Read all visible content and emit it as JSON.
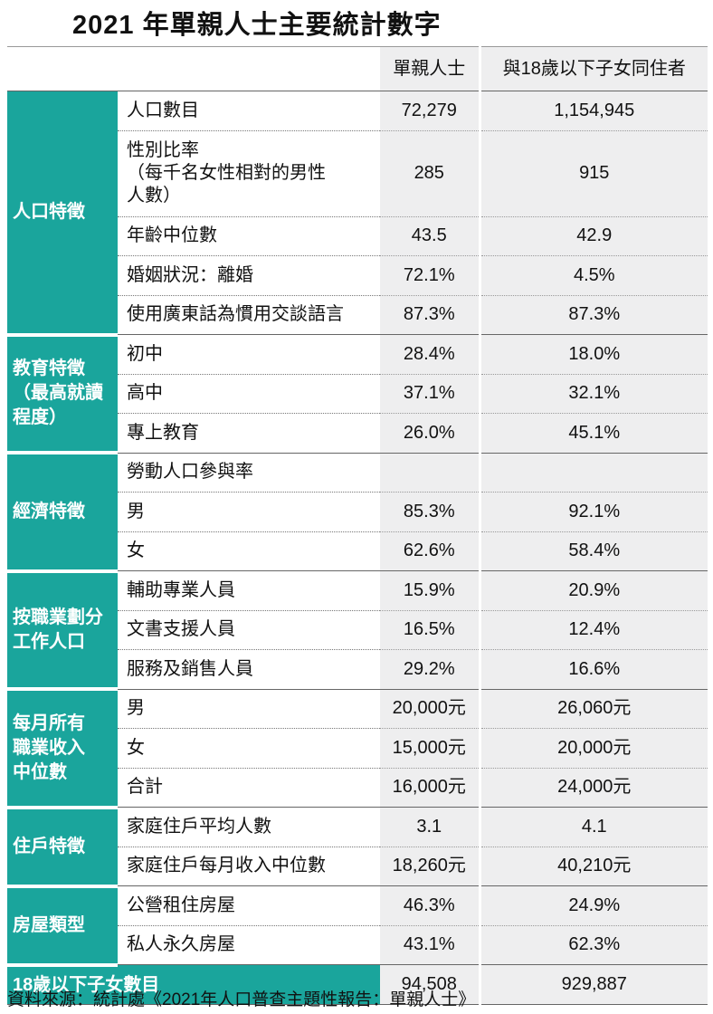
{
  "title": "2021 年單親人士主要統計數字",
  "table": {
    "columns": [
      "單親人士",
      "與18歲以下子女同住者"
    ],
    "groups": [
      {
        "label": "人口特徵",
        "rows": [
          {
            "item": "人口數目",
            "values": [
              "72,279",
              "1,154,945"
            ]
          },
          {
            "item": "性別比率\n（每千名女性相對的男性\n人數）",
            "values": [
              "285",
              "915"
            ]
          },
          {
            "item": "年齡中位數",
            "values": [
              "43.5",
              "42.9"
            ]
          },
          {
            "item": "婚姻狀況：離婚",
            "values": [
              "72.1%",
              "4.5%"
            ]
          },
          {
            "item": "使用廣東話為慣用交談語言",
            "values": [
              "87.3%",
              "87.3%"
            ]
          }
        ]
      },
      {
        "label": "教育特徵\n（最高就讀\n程度）",
        "rows": [
          {
            "item": "初中",
            "values": [
              "28.4%",
              "18.0%"
            ]
          },
          {
            "item": "高中",
            "values": [
              "37.1%",
              "32.1%"
            ]
          },
          {
            "item": "專上教育",
            "values": [
              "26.0%",
              "45.1%"
            ]
          }
        ]
      },
      {
        "label": "經濟特徵",
        "rows": [
          {
            "item": "勞動人口參與率",
            "values": null
          },
          {
            "item": "男",
            "values": [
              "85.3%",
              "92.1%"
            ]
          },
          {
            "item": "女",
            "values": [
              "62.6%",
              "58.4%"
            ]
          }
        ]
      },
      {
        "label": "按職業劃分\n工作人口",
        "rows": [
          {
            "item": "輔助專業人員",
            "values": [
              "15.9%",
              "20.9%"
            ]
          },
          {
            "item": "文書支援人員",
            "values": [
              "16.5%",
              "12.4%"
            ]
          },
          {
            "item": "服務及銷售人員",
            "values": [
              "29.2%",
              "16.6%"
            ]
          }
        ]
      },
      {
        "label": "每月所有\n職業收入\n中位數",
        "rows": [
          {
            "item": "男",
            "values": [
              "20,000元",
              "26,060元"
            ]
          },
          {
            "item": "女",
            "values": [
              "15,000元",
              "20,000元"
            ]
          },
          {
            "item": "合計",
            "values": [
              "16,000元",
              "24,000元"
            ]
          }
        ]
      },
      {
        "label": "住戶特徵",
        "rows": [
          {
            "item": "家庭住戶平均人數",
            "values": [
              "3.1",
              "4.1"
            ]
          },
          {
            "item": "家庭住戶每月收入中位數",
            "values": [
              "18,260元",
              "40,210元"
            ]
          }
        ]
      },
      {
        "label": "房屋類型",
        "rows": [
          {
            "item": "公營租住房屋",
            "values": [
              "46.3%",
              "24.9%"
            ]
          },
          {
            "item": "私人永久房屋",
            "values": [
              "43.1%",
              "62.3%"
            ]
          }
        ]
      }
    ],
    "footer_row": {
      "label": "18歲以下子女數目",
      "values": [
        "94,508",
        "929,887"
      ]
    }
  },
  "source": "資料來源：統計處《2021年人口普查主題性報告：單親人士》"
}
